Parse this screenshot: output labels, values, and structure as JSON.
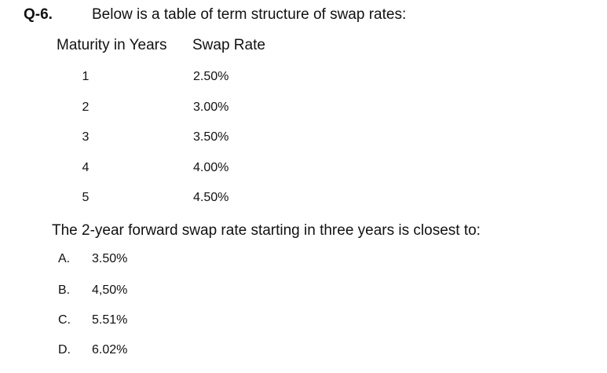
{
  "question": {
    "number": "Q-6.",
    "stem": "Below is a table of term structure of swap rates:"
  },
  "table": {
    "headers": [
      "Maturity in Years",
      "Swap Rate"
    ],
    "rows": [
      [
        "1",
        "2.50%"
      ],
      [
        "2",
        "3.00%"
      ],
      [
        "3",
        "3.50%"
      ],
      [
        "4",
        "4.00%"
      ],
      [
        "5",
        "4.50%"
      ]
    ]
  },
  "prompt": "The 2-year forward swap rate starting in three years is closest to:",
  "options": [
    {
      "letter": "A.",
      "text": "3.50%"
    },
    {
      "letter": "B.",
      "text": "4,50%"
    },
    {
      "letter": "C.",
      "text": "5.51%"
    },
    {
      "letter": "D.",
      "text": "6.02%"
    }
  ]
}
